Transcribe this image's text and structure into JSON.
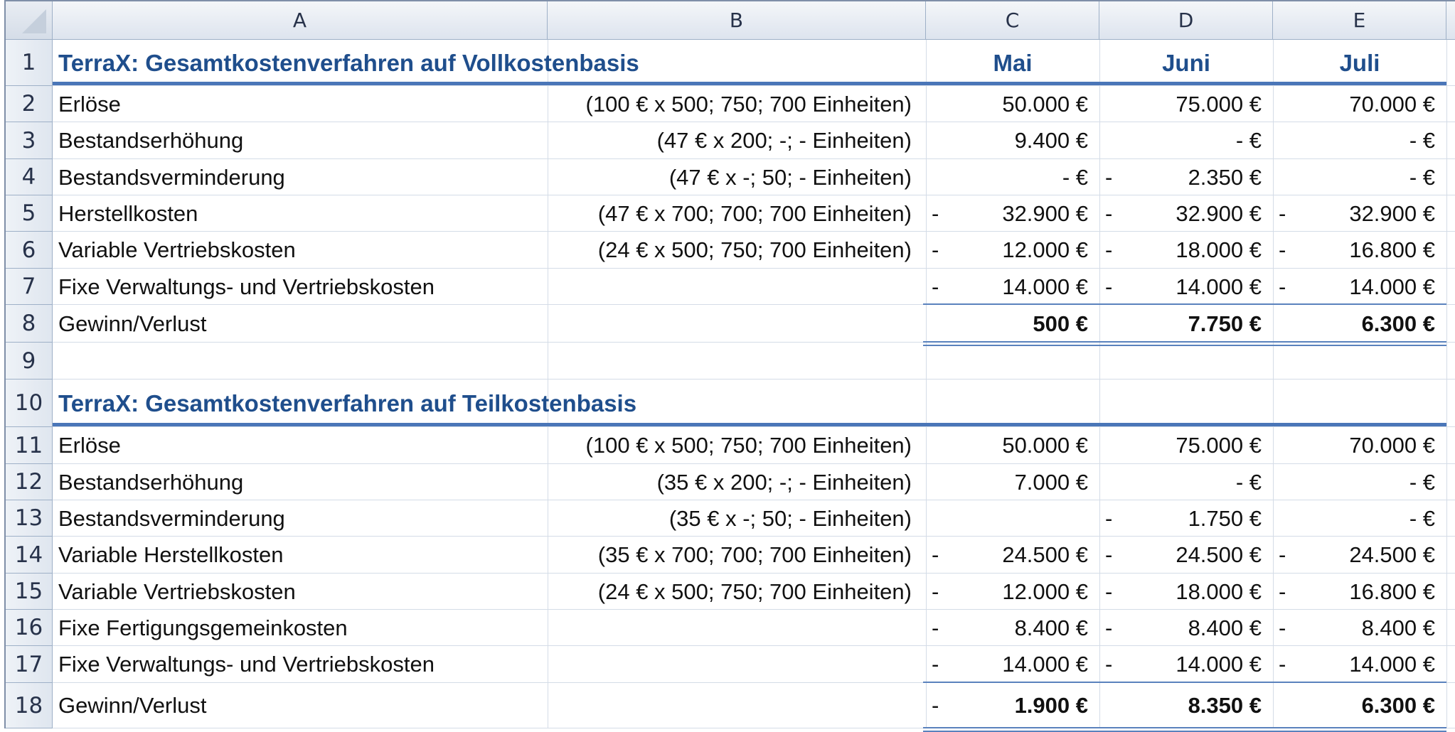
{
  "columns": [
    "A",
    "B",
    "C",
    "D",
    "E"
  ],
  "rows": [
    "1",
    "2",
    "3",
    "4",
    "5",
    "6",
    "7",
    "8",
    "9",
    "10",
    "11",
    "12",
    "13",
    "14",
    "15",
    "16",
    "17",
    "18"
  ],
  "section1": {
    "title": "TerraX: Gesamtkostenverfahren auf Vollkostenbasis",
    "months": [
      "Mai",
      "Juni",
      "Juli"
    ],
    "lines": [
      {
        "label": "Erlöse",
        "detail": "(100 € x 500; 750; 700 Einheiten)",
        "c": "50.000 €",
        "d": "75.000 €",
        "e": "70.000 €"
      },
      {
        "label": "Bestandserhöhung",
        "detail": "(47 € x 200; -; - Einheiten)",
        "c": "9.400 €",
        "d": "-     €",
        "e": "-     €"
      },
      {
        "label": "Bestandsverminderung",
        "detail": "(47 € x -; 50; - Einheiten)",
        "c": "-     €",
        "d": "2.350 €",
        "e": "-     €"
      },
      {
        "label": "Herstellkosten",
        "detail": "(47 € x 700; 700; 700 Einheiten)",
        "c": "32.900 €",
        "d": "32.900 €",
        "e": "32.900 €"
      },
      {
        "label": "Variable Vertriebskosten",
        "detail": "(24 € x 500; 750; 700 Einheiten)",
        "c": "12.000 €",
        "d": "18.000 €",
        "e": "16.800 €"
      },
      {
        "label": "Fixe Verwaltungs- und Vertriebskosten",
        "detail": "",
        "c": "14.000 €",
        "d": "14.000 €",
        "e": "14.000 €"
      },
      {
        "label": "Gewinn/Verlust",
        "detail": "",
        "c": "500 €",
        "d": "7.750 €",
        "e": "6.300 €"
      }
    ]
  },
  "section2": {
    "title": "TerraX: Gesamtkostenverfahren auf Teilkostenbasis",
    "lines": [
      {
        "label": "Erlöse",
        "detail": "(100 € x 500; 750; 700 Einheiten)",
        "c": "50.000 €",
        "d": "75.000 €",
        "e": "70.000 €"
      },
      {
        "label": "Bestandserhöhung",
        "detail": "(35 € x 200; -; - Einheiten)",
        "c": "7.000 €",
        "d": "-     €",
        "e": "-     €"
      },
      {
        "label": "Bestandsverminderung",
        "detail": "(35 € x -; 50; - Einheiten)",
        "c": "",
        "d": "1.750 €",
        "e": "-     €"
      },
      {
        "label": "Variable Herstellkosten",
        "detail": "(35 € x 700; 700; 700 Einheiten)",
        "c": "24.500 €",
        "d": "24.500 €",
        "e": "24.500 €"
      },
      {
        "label": "Variable Vertriebskosten",
        "detail": "(24 € x 500; 750; 700 Einheiten)",
        "c": "12.000 €",
        "d": "18.000 €",
        "e": "16.800 €"
      },
      {
        "label": "Fixe Fertigungsgemeinkosten",
        "detail": "",
        "c": "8.400 €",
        "d": "8.400 €",
        "e": "8.400 €"
      },
      {
        "label": "Fixe Verwaltungs- und Vertriebskosten",
        "detail": "",
        "c": "14.000 €",
        "d": "14.000 €",
        "e": "14.000 €"
      },
      {
        "label": "Gewinn/Verlust",
        "detail": "",
        "c": "1.900 €",
        "d": "8.350 €",
        "e": "6.300 €"
      }
    ]
  },
  "minus_sign": "-"
}
